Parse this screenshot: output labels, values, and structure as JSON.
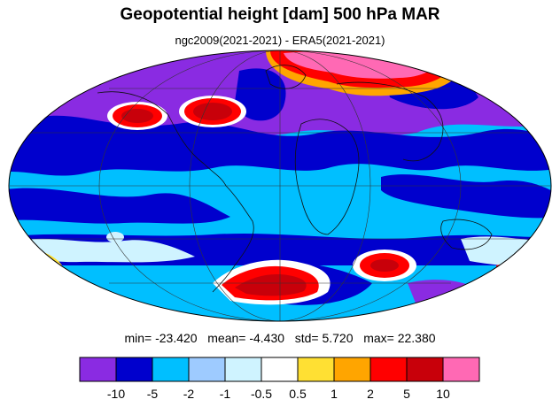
{
  "title": "Geopotential height [dam] 500 hPa MAR",
  "subtitle": "ngc2009(2021-2021) - ERA5(2021-2021)",
  "stats": {
    "min_label": "min=",
    "min": "-23.420",
    "mean_label": "mean=",
    "mean": "-4.430",
    "std_label": "std=",
    "std": "5.720",
    "max_label": "max=",
    "max": "22.380"
  },
  "colorbar": {
    "colors": [
      "#8a2be2",
      "#0000cd",
      "#00bfff",
      "#9ecbff",
      "#cff3ff",
      "#ffffff",
      "#ffe033",
      "#ffa500",
      "#ff0000",
      "#c8000a",
      "#ff69b4"
    ],
    "tick_labels": [
      "-10",
      "-5",
      "-2",
      "-1",
      "-0.5",
      "0.5",
      "1",
      "2",
      "5",
      "10"
    ]
  },
  "palette": {
    "violet": "#8a2be2",
    "blue": "#0000cd",
    "lightblue": "#00bfff",
    "red": "#ff0000",
    "darkred": "#c8000a",
    "pink": "#ff69b4",
    "white": "#ffffff",
    "yellow": "#ffe033",
    "orange": "#ffa500"
  }
}
